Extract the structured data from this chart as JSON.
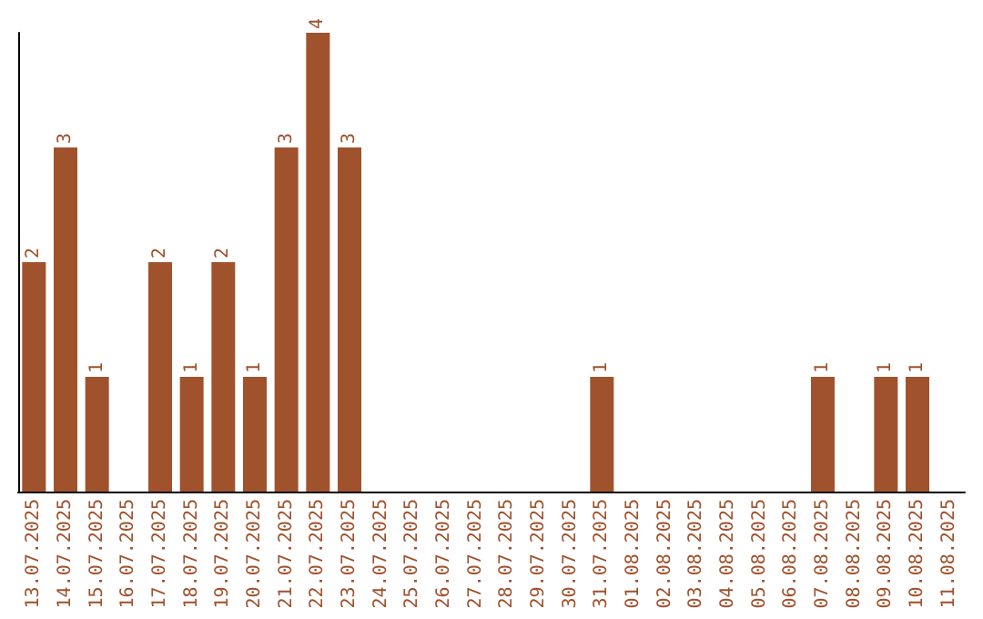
{
  "chart_data": {
    "type": "bar",
    "categories": [
      "13.07.2025",
      "14.07.2025",
      "15.07.2025",
      "16.07.2025",
      "17.07.2025",
      "18.07.2025",
      "19.07.2025",
      "20.07.2025",
      "21.07.2025",
      "22.07.2025",
      "23.07.2025",
      "24.07.2025",
      "25.07.2025",
      "26.07.2025",
      "27.07.2025",
      "28.07.2025",
      "29.07.2025",
      "30.07.2025",
      "31.07.2025",
      "01.08.2025",
      "02.08.2025",
      "03.08.2025",
      "04.08.2025",
      "05.08.2025",
      "06.08.2025",
      "07.08.2025",
      "08.08.2025",
      "09.08.2025",
      "10.08.2025",
      "11.08.2025"
    ],
    "values": [
      2,
      3,
      1,
      0,
      2,
      1,
      2,
      1,
      3,
      4,
      3,
      0,
      0,
      0,
      0,
      0,
      0,
      0,
      1,
      0,
      0,
      0,
      0,
      0,
      0,
      1,
      0,
      1,
      1,
      0
    ],
    "value_labels": [
      "2",
      "3",
      "1",
      null,
      "2",
      "1",
      "2",
      "1",
      "3",
      "4",
      "3",
      null,
      null,
      null,
      null,
      null,
      null,
      null,
      "1",
      null,
      null,
      null,
      null,
      null,
      null,
      "1",
      null,
      "1",
      "1",
      null
    ],
    "color": "#a0522d",
    "tick_labels": "x"
  }
}
